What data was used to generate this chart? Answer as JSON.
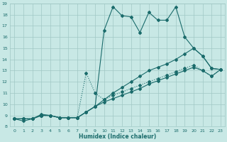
{
  "xlabel": "Humidex (Indice chaleur)",
  "xlim": [
    -0.5,
    23.5
  ],
  "ylim": [
    8,
    19
  ],
  "yticks": [
    8,
    9,
    10,
    11,
    12,
    13,
    14,
    15,
    16,
    17,
    18,
    19
  ],
  "xticks": [
    0,
    1,
    2,
    3,
    4,
    5,
    6,
    7,
    8,
    9,
    10,
    11,
    12,
    13,
    14,
    15,
    16,
    17,
    18,
    19,
    20,
    21,
    22,
    23
  ],
  "bg_color": "#c8e8e5",
  "grid_color": "#a0c8c4",
  "line_color": "#1a6b6b",
  "line1_x": [
    0,
    1,
    2,
    3,
    4,
    5,
    6,
    7,
    8,
    9,
    10,
    11,
    12,
    13,
    14,
    15,
    16,
    17,
    18,
    19,
    20,
    21,
    22,
    23
  ],
  "line1_y": [
    8.7,
    8.5,
    8.7,
    9.1,
    9.0,
    8.8,
    8.8,
    8.8,
    9.3,
    9.8,
    16.6,
    18.7,
    17.9,
    17.8,
    16.4,
    18.2,
    17.5,
    17.5,
    18.7,
    16.0,
    15.0,
    14.3,
    13.2,
    13.1
  ],
  "line1_style": "-",
  "line2_x": [
    0,
    1,
    2,
    3,
    4,
    5,
    6,
    7,
    8,
    9,
    10,
    11,
    12,
    13,
    14,
    15,
    16,
    17,
    18,
    19,
    20,
    21,
    22,
    23
  ],
  "line2_y": [
    8.7,
    8.7,
    8.7,
    9.0,
    9.0,
    8.8,
    8.8,
    8.8,
    9.3,
    9.8,
    10.4,
    11.0,
    11.5,
    12.0,
    12.5,
    13.0,
    13.3,
    13.6,
    14.0,
    14.5,
    15.0,
    14.3,
    13.2,
    13.1
  ],
  "line2_style": "-",
  "line3_x": [
    0,
    1,
    2,
    3,
    4,
    5,
    6,
    7,
    8,
    9,
    10,
    11,
    12,
    13,
    14,
    15,
    16,
    17,
    18,
    19,
    20,
    21,
    22,
    23
  ],
  "line3_y": [
    8.7,
    8.7,
    8.7,
    9.0,
    9.0,
    8.8,
    8.8,
    8.8,
    9.3,
    9.8,
    10.2,
    10.5,
    10.8,
    11.1,
    11.4,
    11.8,
    12.1,
    12.4,
    12.7,
    13.0,
    13.3,
    13.0,
    12.5,
    13.1
  ],
  "line3_style": "-",
  "line4_x": [
    0,
    1,
    2,
    3,
    4,
    5,
    6,
    7,
    8,
    9,
    10,
    11,
    12,
    13,
    14,
    15,
    16,
    17,
    18,
    19,
    20,
    21,
    22,
    23
  ],
  "line4_y": [
    8.7,
    8.7,
    8.7,
    9.0,
    9.0,
    8.8,
    8.8,
    8.8,
    12.8,
    11.0,
    10.4,
    10.8,
    11.1,
    11.4,
    11.7,
    12.0,
    12.3,
    12.6,
    12.9,
    13.2,
    13.5,
    13.0,
    12.5,
    13.1
  ],
  "line4_style": "dotted",
  "markersize": 2.0,
  "marker": "D",
  "linewidth": 0.8,
  "tick_labelsize": 4.5,
  "xlabel_fontsize": 5.5
}
